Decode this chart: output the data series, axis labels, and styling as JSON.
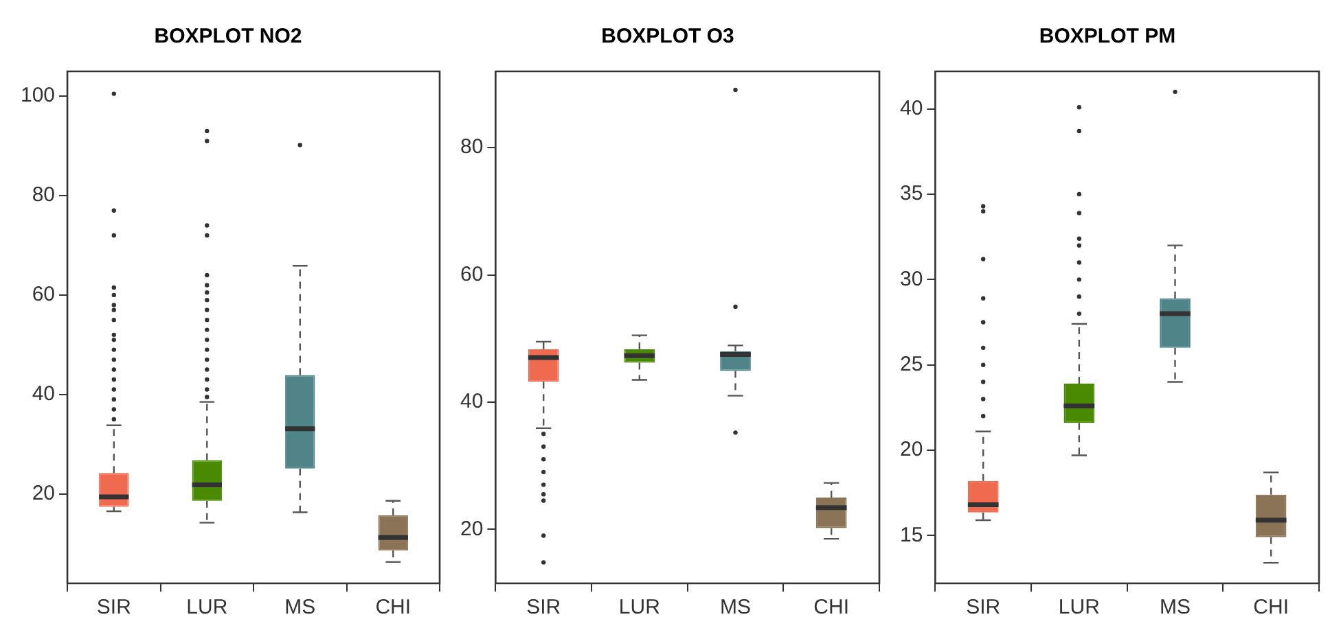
{
  "chart_data": [
    {
      "type": "box",
      "title": "BOXPLOT NO2",
      "categories": [
        "SIR",
        "LUR",
        "MS",
        "CHI"
      ],
      "colors": [
        "#f06a50",
        "#4a8a00",
        "#4f8488",
        "#8b7355"
      ],
      "ylim": [
        2,
        105
      ],
      "yticks": [
        20,
        40,
        60,
        80,
        100
      ],
      "grid": false,
      "boxes": [
        {
          "low": 16.5,
          "q1": 17.4,
          "median": 19.4,
          "q3": 24.2,
          "high": 33.8,
          "outliers": [
            35,
            37,
            39,
            41,
            43,
            45,
            47,
            49,
            51,
            52,
            55,
            57,
            58,
            60,
            61.5,
            72,
            77,
            100.5
          ]
        },
        {
          "low": 14.2,
          "q1": 18.6,
          "median": 21.8,
          "q3": 26.8,
          "high": 38.5,
          "outliers": [
            39.5,
            41,
            43,
            45,
            47,
            49,
            51,
            53,
            55,
            57,
            59,
            60.5,
            62,
            64,
            72,
            74,
            91,
            93
          ]
        },
        {
          "low": 16.3,
          "q1": 25.1,
          "median": 33.1,
          "q3": 43.9,
          "high": 65.9,
          "outliers": [
            90.2
          ]
        },
        {
          "low": 6.3,
          "q1": 8.6,
          "median": 11.2,
          "q3": 15.7,
          "high": 18.6
        }
      ]
    },
    {
      "type": "box",
      "title": "BOXPLOT O3",
      "categories": [
        "SIR",
        "LUR",
        "MS",
        "CHI"
      ],
      "colors": [
        "#f06a50",
        "#4a8a00",
        "#4f8488",
        "#8b7355"
      ],
      "ylim": [
        11.5,
        92
      ],
      "yticks": [
        20,
        40,
        60,
        80
      ],
      "grid": false,
      "boxes": [
        {
          "low": 35.9,
          "q1": 43.2,
          "median": 47,
          "q3": 48.3,
          "high": 49.5,
          "outliers": [
            35,
            33,
            31,
            29,
            27,
            25.5,
            24.5,
            19,
            14.8
          ]
        },
        {
          "low": 43.5,
          "q1": 46.2,
          "median": 47.3,
          "q3": 48.3,
          "high": 50.5
        },
        {
          "low": 41,
          "q1": 44.9,
          "median": 47.5,
          "q3": 48,
          "high": 48.9,
          "outliers": [
            89.1,
            55,
            35.2
          ]
        },
        {
          "low": 18.5,
          "q1": 20.2,
          "median": 23.4,
          "q3": 25,
          "high": 27.3
        }
      ]
    },
    {
      "type": "box",
      "title": "BOXPLOT PM",
      "categories": [
        "SIR",
        "LUR",
        "MS",
        "CHI"
      ],
      "colors": [
        "#f06a50",
        "#4a8a00",
        "#4f8488",
        "#8b7355"
      ],
      "ylim": [
        12.2,
        42.2
      ],
      "yticks": [
        15,
        20,
        25,
        30,
        35,
        40
      ],
      "grid": false,
      "boxes": [
        {
          "low": 15.9,
          "q1": 16.35,
          "median": 16.8,
          "q3": 18.2,
          "high": 21.1,
          "outliers": [
            22,
            23,
            24,
            25,
            26,
            27.5,
            28.9,
            31.2,
            34,
            34.3
          ]
        },
        {
          "low": 19.7,
          "q1": 21.6,
          "median": 22.6,
          "q3": 23.9,
          "high": 27.4,
          "outliers": [
            28,
            29,
            30,
            31,
            32,
            32.4,
            33.9,
            35,
            38.7,
            40.1
          ]
        },
        {
          "low": 24,
          "q1": 26,
          "median": 28,
          "q3": 28.9,
          "high": 32,
          "outliers": [
            41
          ]
        },
        {
          "low": 13.4,
          "q1": 14.9,
          "median": 15.9,
          "q3": 17.4,
          "high": 18.7
        }
      ]
    }
  ]
}
